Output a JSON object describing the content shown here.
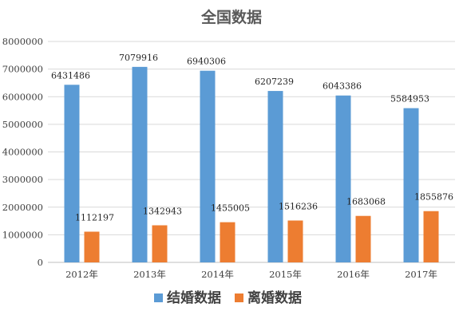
{
  "chart_data": {
    "type": "bar",
    "title": "全国数据",
    "categories": [
      "2012年",
      "2013年",
      "2014年",
      "2015年",
      "2016年",
      "2017年"
    ],
    "series": [
      {
        "name": "结婚数据",
        "color": "#5B9BD5",
        "values": [
          6431486,
          7079916,
          6940306,
          6207239,
          6043386,
          5584953
        ],
        "labels": [
          "6431486",
          "7079916",
          "6940306",
          "6207239",
          "6043386",
          "5584953"
        ]
      },
      {
        "name": "离婚数据",
        "color": "#ED7D31",
        "values": [
          1112197,
          1342943,
          1455005,
          1516236,
          1683068,
          1855876
        ],
        "labels": [
          "1112197",
          "1342943",
          "1455005",
          "1516236",
          "1683068",
          "1855876"
        ]
      }
    ],
    "ylim": [
      0,
      8000000
    ],
    "yticks": [
      "0",
      "1000000",
      "2000000",
      "3000000",
      "4000000",
      "5000000",
      "6000000",
      "7000000",
      "8000000"
    ],
    "xlabel": "",
    "ylabel": "",
    "grid": true,
    "legend_position": "bottom"
  }
}
